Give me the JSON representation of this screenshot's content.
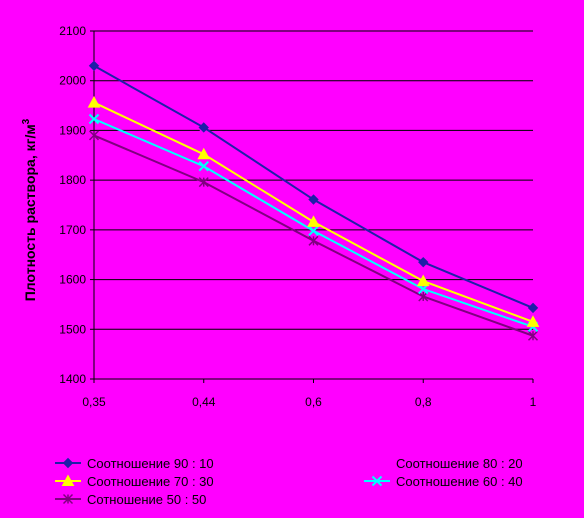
{
  "chart_data": {
    "type": "line",
    "title": "",
    "xlabel": "",
    "ylabel": "Плотность раствора, кг/м",
    "ylabel_sup": "3",
    "categories": [
      "0,35",
      "0,44",
      "0,6",
      "0,8",
      "1"
    ],
    "ylim": [
      1400,
      2100
    ],
    "yticks": [
      1400,
      1500,
      1600,
      1700,
      1800,
      1900,
      2000,
      2100
    ],
    "grid": true,
    "legend_position": "bottom",
    "series": [
      {
        "name": "Соотношение 90 : 10",
        "color": "#1F1FA8",
        "marker": "diamond",
        "values": [
          2030,
          1906,
          1761,
          1635,
          1543
        ]
      },
      {
        "name": "Соотношение 80 : 20",
        "color": "#FF00FF",
        "marker": "square",
        "values": [
          2030,
          1906,
          1761,
          1635,
          1543
        ]
      },
      {
        "name": "Соотношение  70 : 30",
        "color": "#FFFF00",
        "marker": "triangle",
        "values": [
          1956,
          1852,
          1716,
          1597,
          1515
        ]
      },
      {
        "name": "Соотношение 60 : 40",
        "color": "#00FFFF",
        "marker": "x",
        "values": [
          1923,
          1828,
          1698,
          1581,
          1505
        ]
      },
      {
        "name": "Сотношение 50 : 50",
        "color": "#800080",
        "marker": "star",
        "values": [
          1890,
          1796,
          1678,
          1566,
          1487
        ]
      }
    ]
  }
}
